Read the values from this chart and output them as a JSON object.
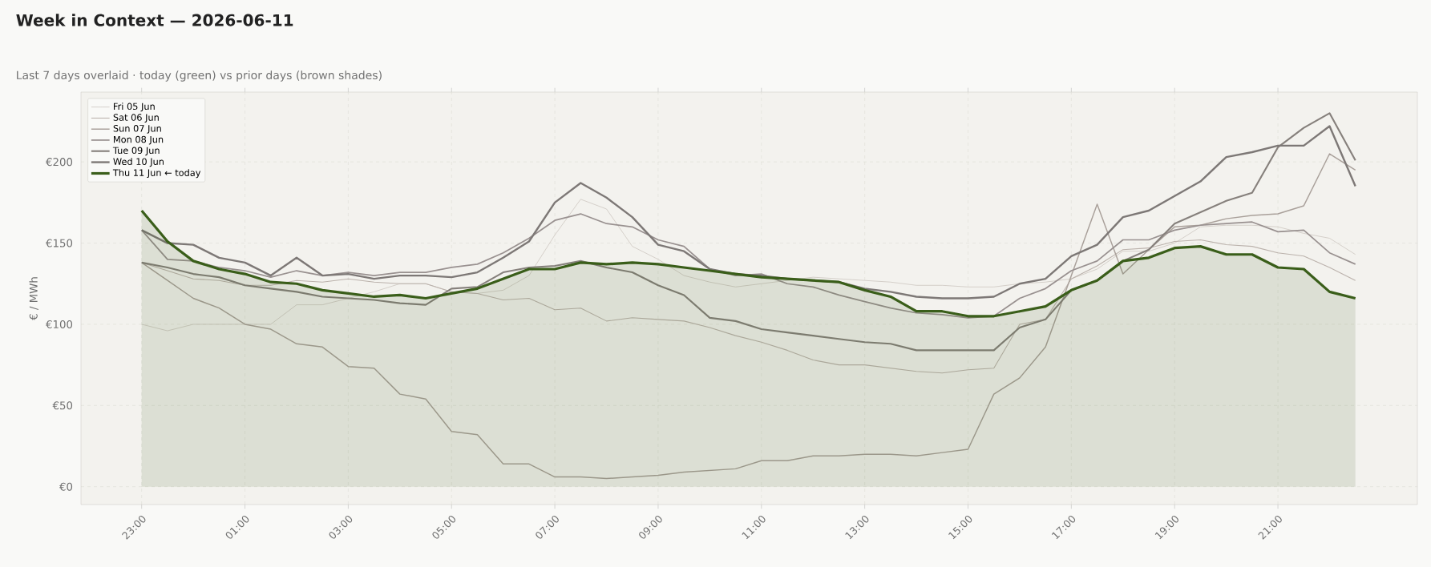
{
  "chart_data": {
    "type": "line",
    "title": "Week in Context — 2026-06-11",
    "subtitle": "Last 7 days overlaid  ·  today (green) vs prior days (brown shades)",
    "ylabel": "€ / MWh",
    "categories": [
      "23:00",
      null,
      null,
      null,
      "01:00",
      null,
      null,
      null,
      "03:00",
      null,
      null,
      null,
      "05:00",
      null,
      null,
      null,
      "07:00",
      null,
      null,
      null,
      "09:00",
      null,
      null,
      null,
      "11:00",
      null,
      null,
      null,
      "13:00",
      null,
      null,
      null,
      "15:00",
      null,
      null,
      null,
      "17:00",
      null,
      null,
      null,
      "19:00",
      null,
      null,
      null,
      "21:00",
      null,
      null,
      null
    ],
    "series": [
      {
        "name": "Fri 05 Jun",
        "color": "#cdc6c0",
        "values": [
          100,
          96,
          100,
          100,
          100,
          100,
          112,
          112,
          116,
          120,
          125,
          125,
          120,
          119,
          121,
          130,
          155,
          177,
          171,
          148,
          140,
          130,
          126,
          123,
          125,
          127,
          129,
          128,
          127,
          126,
          124,
          124,
          123,
          123,
          125,
          126,
          128,
          134,
          145,
          145,
          150,
          160,
          161,
          161,
          160,
          156,
          153,
          143
        ]
      },
      {
        "name": "Sat 06 Jun",
        "color": "#bbb2ac",
        "values": [
          138,
          133,
          128,
          127,
          124,
          124,
          127,
          126,
          128,
          126,
          125,
          125,
          120,
          119,
          115,
          116,
          109,
          110,
          102,
          104,
          103,
          102,
          98,
          93,
          89,
          84,
          78,
          75,
          75,
          73,
          71,
          70,
          72,
          73,
          100,
          103,
          128,
          136,
          146,
          147,
          151,
          152,
          149,
          148,
          144,
          142,
          135,
          127
        ]
      },
      {
        "name": "Sun 07 Jun",
        "color": "#a9a09a",
        "values": [
          138,
          127,
          116,
          110,
          100,
          97,
          88,
          86,
          74,
          73,
          57,
          54,
          34,
          32,
          14,
          14,
          6,
          6,
          5,
          6,
          7,
          9,
          10,
          11,
          16,
          16,
          19,
          19,
          20,
          20,
          19,
          21,
          23,
          57,
          67,
          86,
          130,
          174,
          131,
          146,
          160,
          161,
          165,
          167,
          168,
          173,
          205,
          195
        ]
      },
      {
        "name": "Mon 08 Jun",
        "color": "#999190",
        "values": [
          158,
          140,
          139,
          135,
          133,
          129,
          133,
          130,
          132,
          130,
          132,
          132,
          135,
          137,
          144,
          153,
          164,
          168,
          162,
          160,
          152,
          148,
          134,
          130,
          131,
          125,
          123,
          118,
          114,
          110,
          107,
          106,
          104,
          105,
          116,
          122,
          133,
          139,
          152,
          152,
          158,
          161,
          162,
          163,
          157,
          158,
          144,
          137
        ]
      },
      {
        "name": "Tue 09 Jun",
        "color": "#86807c",
        "values": [
          138,
          135,
          131,
          129,
          124,
          122,
          120,
          117,
          116,
          115,
          113,
          112,
          122,
          123,
          132,
          135,
          136,
          139,
          135,
          132,
          124,
          118,
          104,
          102,
          97,
          95,
          93,
          91,
          89,
          88,
          84,
          84,
          84,
          84,
          98,
          103,
          121,
          127,
          139,
          146,
          162,
          169,
          176,
          181,
          209,
          221,
          230,
          201
        ]
      },
      {
        "name": "Wed 10 Jun",
        "color": "#7d7876",
        "values": [
          158,
          150,
          149,
          141,
          138,
          130,
          141,
          130,
          131,
          128,
          130,
          130,
          129,
          132,
          141,
          151,
          175,
          187,
          178,
          166,
          149,
          145,
          134,
          131,
          130,
          128,
          127,
          126,
          122,
          120,
          117,
          116,
          116,
          117,
          125,
          128,
          142,
          149,
          166,
          170,
          179,
          188,
          203,
          206,
          210,
          210,
          222,
          185
        ]
      },
      {
        "name": "Thu 11 Jun  ← today",
        "color": "#3a5e1a",
        "type": "area",
        "values": [
          170,
          151,
          139,
          134,
          131,
          126,
          125,
          121,
          119,
          117,
          118,
          116,
          119,
          122,
          128,
          134,
          134,
          138,
          137,
          138,
          137,
          135,
          133,
          131,
          129,
          128,
          127,
          126,
          121,
          117,
          108,
          108,
          105,
          105,
          108,
          111,
          121,
          127,
          139,
          141,
          147,
          148,
          143,
          143,
          135,
          134,
          120,
          116
        ]
      }
    ],
    "ylim": [
      -11,
      243
    ],
    "yticks": [
      {
        "value": 0,
        "label": "€0"
      },
      {
        "value": 50,
        "label": "€50"
      },
      {
        "value": 100,
        "label": "€100"
      },
      {
        "value": 150,
        "label": "€150"
      },
      {
        "value": 200,
        "label": "€200"
      }
    ],
    "grid": true,
    "legend": "top left"
  }
}
